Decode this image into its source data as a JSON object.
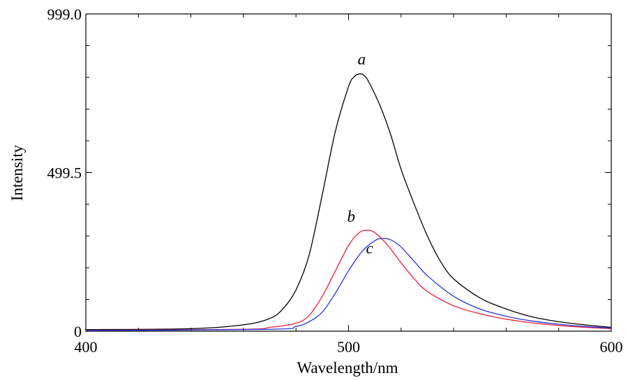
{
  "chart_data": {
    "type": "line",
    "title": "",
    "xlabel": "Wavelength/nm",
    "ylabel": "Intensity",
    "xlim": [
      400,
      600
    ],
    "ylim": [
      0,
      999.0
    ],
    "x_tick_labels": [
      "400",
      "500",
      "600"
    ],
    "y_tick_labels": [
      "0",
      "499.5",
      "999.0"
    ],
    "grid": false,
    "series": [
      {
        "name": "a",
        "color": "#000000",
        "x": [
          400,
          440,
          460,
          470,
          475,
          480,
          485,
          490,
          495,
          500,
          502,
          504,
          506,
          508,
          512,
          516,
          520,
          525,
          530,
          535,
          540,
          550,
          560,
          570,
          580,
          590,
          600
        ],
        "y": [
          5,
          8,
          20,
          40,
          70,
          130,
          240,
          430,
          630,
          770,
          800,
          810,
          805,
          780,
          710,
          620,
          510,
          400,
          300,
          220,
          165,
          105,
          70,
          45,
          30,
          20,
          12
        ]
      },
      {
        "name": "b",
        "color": "#e8213f",
        "x": [
          400,
          460,
          470,
          480,
          485,
          490,
          495,
          500,
          504,
          507,
          510,
          515,
          520,
          525,
          530,
          540,
          550,
          560,
          570,
          580,
          590,
          600
        ],
        "y": [
          3,
          6,
          12,
          25,
          50,
          110,
          190,
          270,
          310,
          318,
          310,
          270,
          215,
          165,
          125,
          80,
          55,
          38,
          26,
          18,
          12,
          8
        ]
      },
      {
        "name": "c",
        "color": "#2436d8",
        "x": [
          400,
          470,
          480,
          485,
          490,
          495,
          500,
          505,
          510,
          513,
          516,
          520,
          525,
          530,
          540,
          550,
          560,
          570,
          580,
          590,
          600
        ],
        "y": [
          2,
          6,
          15,
          30,
          60,
          120,
          190,
          250,
          285,
          292,
          288,
          265,
          220,
          175,
          110,
          70,
          47,
          32,
          22,
          15,
          10
        ]
      }
    ],
    "annotations": [
      {
        "text": "a",
        "x": 505,
        "y": 840
      },
      {
        "text": "b",
        "x": 501,
        "y": 345
      },
      {
        "text": "c",
        "x": 508,
        "y": 245
      }
    ]
  }
}
